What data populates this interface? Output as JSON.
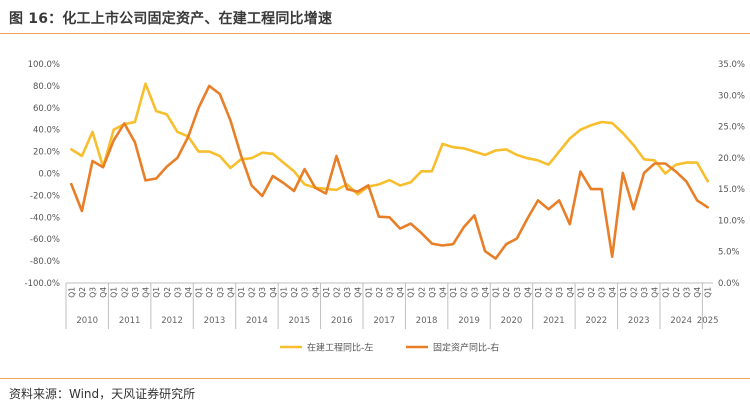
{
  "figure": {
    "title": "图 16：化工上市公司固定资产、在建工程同比增速",
    "source": "资料来源：Wind，天风证券研究所"
  },
  "chart_data": {
    "type": "line",
    "title": "图 16：化工上市公司固定资产、在建工程同比增速",
    "quarters_labels": [
      "Q1",
      "Q2",
      "Q3",
      "Q4"
    ],
    "x": [
      "2010Q1",
      "2010Q2",
      "2010Q3",
      "2010Q4",
      "2011Q1",
      "2011Q2",
      "2011Q3",
      "2011Q4",
      "2012Q1",
      "2012Q2",
      "2012Q3",
      "2012Q4",
      "2013Q1",
      "2013Q2",
      "2013Q3",
      "2013Q4",
      "2014Q1",
      "2014Q2",
      "2014Q3",
      "2014Q4",
      "2015Q1",
      "2015Q2",
      "2015Q3",
      "2015Q4",
      "2016Q1",
      "2016Q2",
      "2016Q3",
      "2016Q4",
      "2017Q1",
      "2017Q2",
      "2017Q3",
      "2017Q4",
      "2018Q1",
      "2018Q2",
      "2018Q3",
      "2018Q4",
      "2019Q1",
      "2019Q2",
      "2019Q3",
      "2019Q4",
      "2020Q1",
      "2020Q2",
      "2020Q3",
      "2020Q4",
      "2021Q1",
      "2021Q2",
      "2021Q3",
      "2021Q4",
      "2022Q1",
      "2022Q2",
      "2022Q3",
      "2022Q4",
      "2023Q1",
      "2023Q2",
      "2023Q3",
      "2023Q4",
      "2024Q1",
      "2024Q2",
      "2024Q3",
      "2024Q4",
      "2025Q1"
    ],
    "year_groups": [
      {
        "label": "2010",
        "count": 4
      },
      {
        "label": "2011",
        "count": 4
      },
      {
        "label": "2012",
        "count": 4
      },
      {
        "label": "2013",
        "count": 4
      },
      {
        "label": "2014",
        "count": 4
      },
      {
        "label": "2015",
        "count": 4
      },
      {
        "label": "2016",
        "count": 4
      },
      {
        "label": "2017",
        "count": 4
      },
      {
        "label": "2018",
        "count": 4
      },
      {
        "label": "2019",
        "count": 4
      },
      {
        "label": "2020",
        "count": 4
      },
      {
        "label": "2021",
        "count": 4
      },
      {
        "label": "2022",
        "count": 4
      },
      {
        "label": "2023",
        "count": 4
      },
      {
        "label": "2024",
        "count": 4
      },
      {
        "label": "2025",
        "count": 1
      }
    ],
    "y_left": {
      "range": [
        -100,
        100
      ],
      "ticks": [
        "100.0%",
        "80.0%",
        "60.0%",
        "40.0%",
        "20.0%",
        "0.0%",
        "-20.0%",
        "-40.0%",
        "-60.0%",
        "-80.0%",
        "-100.0%"
      ]
    },
    "y_right": {
      "range": [
        0,
        35
      ],
      "ticks": [
        "35.0%",
        "30.0%",
        "25.0%",
        "20.0%",
        "15.0%",
        "10.0%",
        "5.0%",
        "0.0%"
      ]
    },
    "series": [
      {
        "name": "在建工程同比-左",
        "axis": "left",
        "color": "#f7bf2e",
        "values": [
          22,
          16,
          38,
          6,
          40,
          45,
          47,
          82,
          57,
          54,
          38,
          34,
          20,
          20,
          16,
          5,
          13,
          14,
          19,
          18,
          10,
          2,
          -10,
          -13,
          -14,
          -15,
          -10,
          -19,
          -12,
          -10,
          -6,
          -11,
          -8,
          2,
          2,
          27,
          24,
          23,
          20,
          17,
          21,
          22,
          17,
          14,
          12,
          8,
          20,
          32,
          40,
          44,
          47,
          46,
          37,
          26,
          13,
          12,
          0,
          8,
          10,
          10,
          -7
        ]
      },
      {
        "name": "固定资产同比-右",
        "axis": "right",
        "color": "#e87f28",
        "values": [
          15.8,
          11.5,
          19.5,
          18.5,
          22.8,
          25.5,
          22.5,
          16.4,
          16.7,
          18.6,
          20.0,
          23.3,
          28,
          31.5,
          30.2,
          26,
          20.4,
          15.6,
          13.9,
          17.1,
          16.0,
          14.7,
          18.2,
          15.2,
          14.3,
          20.3,
          15.0,
          14.6,
          15.6,
          10.6,
          10.5,
          8.7,
          9.5,
          8.0,
          6.3,
          6.0,
          6.2,
          8.9,
          10.8,
          5.1,
          3.9,
          6.2,
          7.1,
          10.3,
          13.2,
          11.8,
          13.2,
          9.4,
          17.8,
          15.0,
          15.0,
          4.2,
          17.6,
          11.8,
          17.6,
          19.1,
          19.1,
          17.8,
          16.2,
          13.2,
          12.1
        ]
      }
    ],
    "legend_position": "bottom-center",
    "grid": false
  }
}
